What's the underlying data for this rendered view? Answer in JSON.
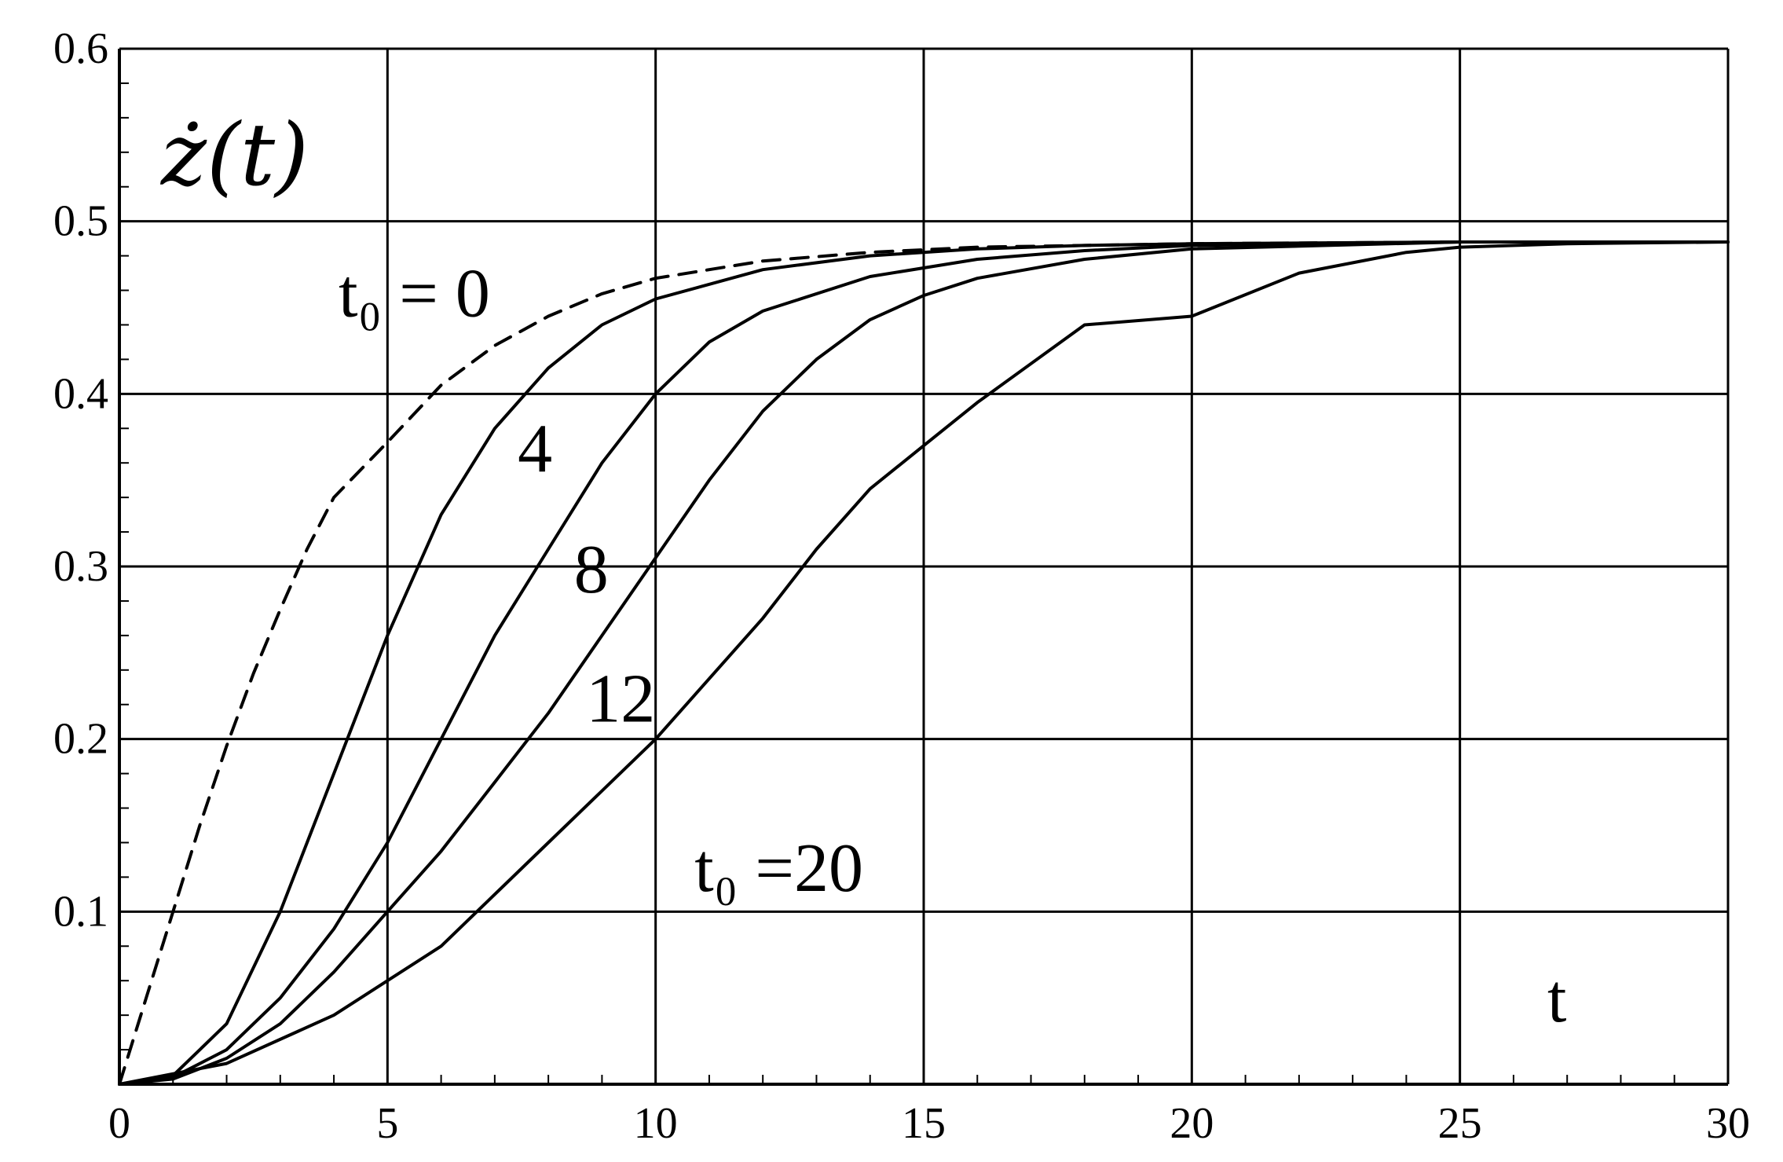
{
  "chart_data": {
    "type": "line",
    "xlabel": "t",
    "ylabel": "ż(t)",
    "xlim": [
      0,
      30
    ],
    "ylim": [
      0,
      0.6
    ],
    "x_ticks": [
      0,
      5,
      10,
      15,
      20,
      25,
      30
    ],
    "x_tick_labels": [
      "0",
      "5",
      "10",
      "15",
      "20",
      "25",
      "30"
    ],
    "y_ticks": [
      0.1,
      0.2,
      0.3,
      0.4,
      0.5,
      0.6
    ],
    "y_tick_labels": [
      "0.1",
      "0.2",
      "0.3",
      "0.4",
      "0.5",
      "0.6"
    ],
    "grid": true,
    "series": [
      {
        "label": "t₀ = 0",
        "style": "dashed",
        "color": "#000000",
        "x": [
          0,
          0.5,
          1,
          1.5,
          2,
          2.5,
          3,
          3.5,
          4,
          5,
          6,
          7,
          8,
          9,
          10,
          12,
          14,
          16,
          18,
          20,
          25,
          30
        ],
        "y": [
          0,
          0.05,
          0.1,
          0.15,
          0.196,
          0.238,
          0.275,
          0.31,
          0.34,
          0.372,
          0.405,
          0.428,
          0.445,
          0.458,
          0.467,
          0.477,
          0.482,
          0.485,
          0.486,
          0.487,
          0.488,
          0.488
        ]
      },
      {
        "label": "4",
        "style": "solid",
        "color": "#000000",
        "x": [
          0,
          1,
          2,
          3,
          4,
          5,
          6,
          7,
          8,
          9,
          10,
          12,
          14,
          16,
          18,
          20,
          25,
          30
        ],
        "y": [
          0,
          0.005,
          0.035,
          0.1,
          0.18,
          0.26,
          0.33,
          0.38,
          0.415,
          0.44,
          0.455,
          0.472,
          0.48,
          0.484,
          0.486,
          0.487,
          0.488,
          0.488
        ]
      },
      {
        "label": "8",
        "style": "solid",
        "color": "#000000",
        "x": [
          0,
          1,
          2,
          3,
          4,
          5,
          6,
          7,
          8,
          9,
          10,
          11,
          12,
          14,
          16,
          18,
          20,
          25,
          30
        ],
        "y": [
          0,
          0.004,
          0.02,
          0.05,
          0.09,
          0.14,
          0.2,
          0.26,
          0.31,
          0.36,
          0.4,
          0.43,
          0.448,
          0.468,
          0.478,
          0.483,
          0.486,
          0.488,
          0.488
        ]
      },
      {
        "label": "12",
        "style": "solid",
        "color": "#000000",
        "x": [
          0,
          1,
          2,
          3,
          4,
          5,
          6,
          7,
          8,
          9,
          10,
          11,
          12,
          13,
          14,
          15,
          16,
          18,
          20,
          25,
          30
        ],
        "y": [
          0,
          0.003,
          0.015,
          0.035,
          0.065,
          0.1,
          0.135,
          0.175,
          0.215,
          0.26,
          0.305,
          0.35,
          0.39,
          0.42,
          0.443,
          0.457,
          0.467,
          0.478,
          0.484,
          0.488,
          0.488
        ]
      },
      {
        "label": "t₀ =20",
        "style": "solid",
        "color": "#000000",
        "x": [
          0,
          2,
          4,
          5,
          6,
          8,
          10,
          12,
          13,
          14,
          15,
          16,
          18,
          20,
          22,
          24,
          25,
          27,
          30
        ],
        "y": [
          0,
          0.012,
          0.04,
          0.06,
          0.08,
          0.14,
          0.2,
          0.27,
          0.31,
          0.345,
          0.37,
          0.395,
          0.44,
          0.445,
          0.47,
          0.482,
          0.485,
          0.487,
          0.488
        ]
      }
    ],
    "annotations": [
      {
        "text": "t₀ = 0",
        "x": 5.5,
        "y": 0.445
      },
      {
        "text": "4",
        "x": 7.75,
        "y": 0.355
      },
      {
        "text": "8",
        "x": 8.8,
        "y": 0.285
      },
      {
        "text": "12",
        "x": 9.35,
        "y": 0.21
      },
      {
        "text": "t₀ =20",
        "x": 12.3,
        "y": 0.112
      }
    ]
  }
}
